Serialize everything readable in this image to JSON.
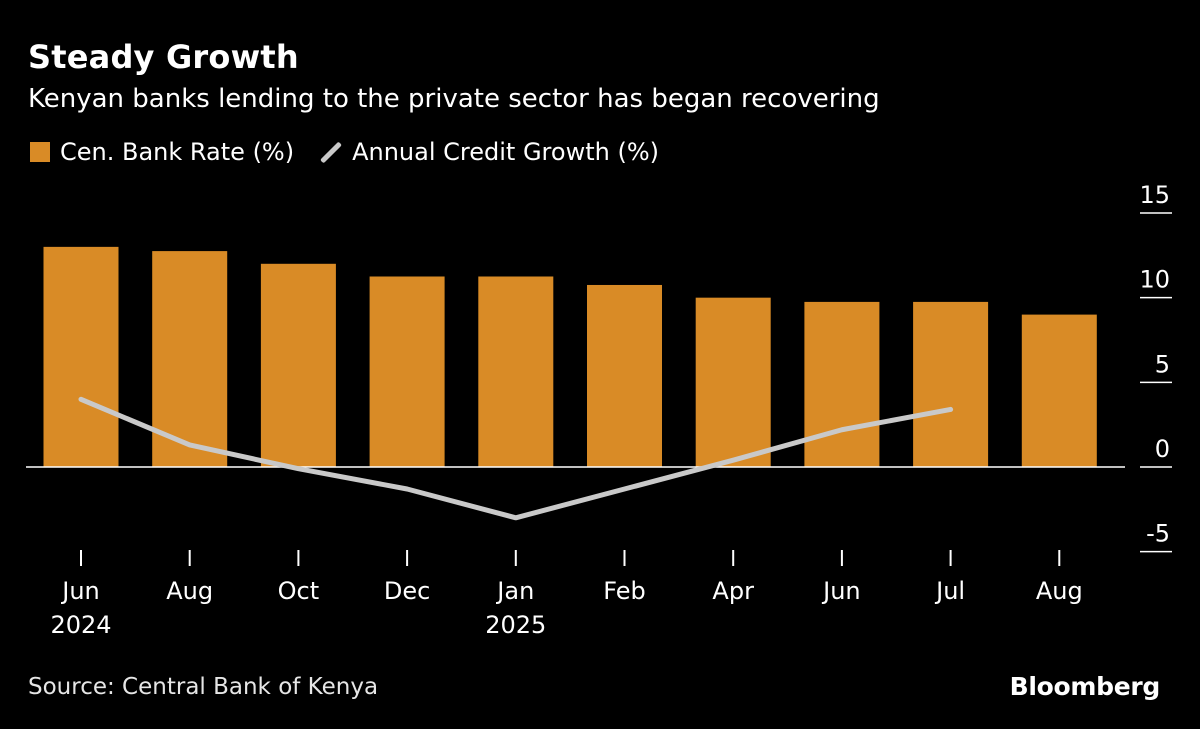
{
  "header": {
    "title": "Steady Growth",
    "subtitle": "Kenyan banks lending to the private sector has began recovering"
  },
  "legend": {
    "bar_label": "Cen. Bank Rate (%)",
    "line_label": "Annual Credit Growth (%)"
  },
  "footer": {
    "source": "Source: Central Bank of Kenya",
    "brand": "Bloomberg"
  },
  "colors": {
    "bar": "#d98b26",
    "line": "#c9c9c9",
    "axis": "#ffffff",
    "background": "#000000"
  },
  "chart_data": {
    "type": "bar",
    "title": "Steady Growth",
    "subtitle": "Kenyan banks lending to the private sector has began recovering",
    "categories": [
      "Jun",
      "Aug",
      "Oct",
      "Dec",
      "Jan",
      "Feb",
      "Apr",
      "Jun",
      "Jul",
      "Aug"
    ],
    "category_sublabels": [
      "2024",
      "",
      "",
      "",
      "2025",
      "",
      "",
      "",
      "",
      ""
    ],
    "series": [
      {
        "name": "Cen. Bank Rate (%)",
        "type": "bar",
        "values": [
          13.0,
          12.75,
          12.0,
          11.25,
          11.25,
          10.75,
          10.0,
          9.75,
          9.75,
          9.0
        ]
      },
      {
        "name": "Annual Credit Growth (%)",
        "type": "line",
        "values": [
          4.0,
          1.3,
          -0.1,
          -1.3,
          -3.0,
          -1.3,
          0.4,
          2.2,
          3.4,
          null
        ]
      }
    ],
    "yticks": [
      15,
      10,
      5,
      0,
      -5
    ],
    "ytick_labels": [
      "15",
      "10",
      "5",
      "0",
      "-5"
    ],
    "ylim": [
      -5,
      15
    ],
    "xlabel": "",
    "ylabel": "",
    "y_axis_side": "right",
    "legend_position": "top-left"
  }
}
